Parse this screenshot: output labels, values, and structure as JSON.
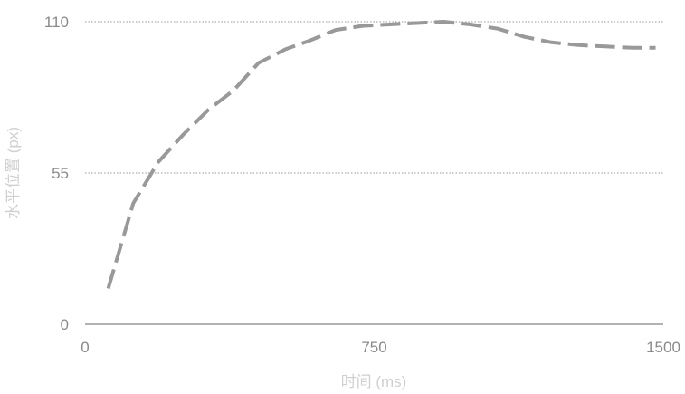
{
  "chart_data": {
    "type": "line",
    "xlabel": "时间 (ms)",
    "ylabel": "水平位置 (px)",
    "xlim": [
      0,
      1500
    ],
    "ylim": [
      0,
      110
    ],
    "xticks": [
      "0",
      "750",
      "1500"
    ],
    "yticks": [
      "0",
      "55",
      "110"
    ],
    "grid": "horizontal-dotted",
    "line_color": "#999999",
    "series": [
      {
        "x": [
          60,
          125,
          190,
          255,
          320,
          385,
          450,
          520,
          580,
          650,
          720,
          790,
          860,
          930,
          1000,
          1070,
          1140,
          1210,
          1280,
          1350,
          1420,
          1480
        ],
        "y": [
          13,
          44,
          59,
          69,
          78,
          85,
          95,
          100,
          103,
          107,
          108.5,
          109,
          109.5,
          110,
          109,
          107.5,
          104.5,
          102.5,
          101.5,
          101,
          100.5,
          100.5
        ]
      }
    ]
  }
}
